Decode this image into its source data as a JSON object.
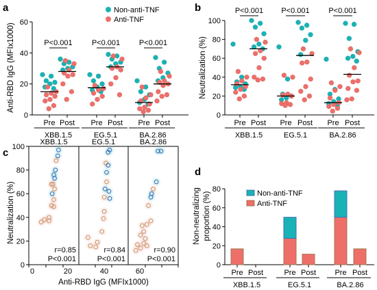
{
  "colors": {
    "non_anti_tnf": "#19b3b5",
    "anti_tnf": "#ee6f6a",
    "stack_non": "#19b3b5",
    "stack_anti": "#ee6f6a"
  },
  "panels": {
    "a": {
      "label": "a",
      "ylabel": "Anti-RBD IgG (MFIx1000)",
      "yticks": [
        "0",
        "20",
        "40",
        "60"
      ],
      "legend": [
        "Non-anti-TNF",
        "Anti-TNF"
      ]
    },
    "b": {
      "label": "b",
      "ylabel": "Neutralization (%)",
      "yticks": [
        "0",
        "20",
        "40",
        "60",
        "80",
        "100"
      ]
    },
    "c": {
      "label": "c",
      "ylabel": "Neutralization (%)",
      "xlabel": "Anti-RBD IgG (MFIx1000)",
      "yticks": [
        "0",
        "20",
        "40",
        "60",
        "80",
        "100"
      ],
      "xticks": [
        "0",
        "20",
        "40",
        "60"
      ]
    },
    "d": {
      "label": "d",
      "ylabel": "Non-neutralizing proportion (%)",
      "yticks": [
        "0",
        "20",
        "40",
        "60",
        "80"
      ],
      "legend": [
        "Non-anti-TNF",
        "Anti-TNF"
      ]
    }
  },
  "chart_data": [
    {
      "type": "scatter",
      "panel": "a",
      "ylabel": "Anti-RBD IgG (MFIx1000)",
      "ylim": [
        0,
        60
      ],
      "categories": [
        "Pre",
        "Post",
        "Pre",
        "Post",
        "Pre",
        "Post"
      ],
      "groups": [
        "XBB.1.5",
        "EG.5.1",
        "BA.2.86"
      ],
      "significance": [
        "P<0.001",
        "P<0.001",
        "P<0.001"
      ],
      "medians": [
        15,
        28,
        17.5,
        31,
        8,
        20
      ],
      "series": [
        {
          "name": "Non-anti-TNF",
          "values": [
            [
              26,
              25,
              22,
              21,
              20,
              18,
              17
            ],
            [
              36,
              34,
              33,
              31,
              30,
              29
            ],
            [
              26,
              25,
              22,
              20,
              18,
              16,
              15
            ],
            [
              39,
              38,
              36,
              34,
              33,
              31
            ],
            [
              22,
              18,
              15,
              13,
              10,
              8,
              7
            ],
            [
              37,
              34,
              30,
              27,
              24,
              22
            ]
          ]
        },
        {
          "name": "Anti-TNF",
          "values": [
            [
              18,
              15,
              14,
              13,
              12,
              10,
              9,
              6,
              4
            ],
            [
              35,
              33,
              29,
              27,
              26,
              25,
              20,
              15,
              10
            ],
            [
              19,
              17,
              16,
              14,
              12,
              10,
              7
            ],
            [
              38,
              36,
              31,
              30,
              29,
              24,
              20,
              13
            ],
            [
              18,
              13,
              11,
              9,
              7,
              5,
              4,
              3,
              2
            ],
            [
              28,
              25,
              22,
              21,
              20,
              19,
              15,
              13,
              12,
              9
            ]
          ]
        }
      ]
    },
    {
      "type": "scatter",
      "panel": "b",
      "ylabel": "Neutralization (%)",
      "ylim": [
        0,
        100
      ],
      "categories": [
        "Pre",
        "Post",
        "Pre",
        "Post",
        "Pre",
        "Post"
      ],
      "groups": [
        "XBB.1.5",
        "EG.5.1",
        "BA.2.86"
      ],
      "significance": [
        "P<0.001",
        "P<0.001",
        "P<0.001"
      ],
      "medians": [
        32,
        70,
        20,
        63,
        13,
        43
      ],
      "series": [
        {
          "name": "Non-anti-TNF",
          "values": [
            [
              75,
              40,
              35,
              33,
              30,
              29,
              27
            ],
            [
              100,
              97,
              93,
              86,
              75,
              72,
              70
            ],
            [
              72,
              38,
              22,
              20,
              18,
              16
            ],
            [
              98,
              95,
              92,
              85,
              79,
              64
            ],
            [
              59,
              27,
              22,
              17,
              14,
              12,
              10
            ],
            [
              97,
              96,
              81,
              67,
              62,
              60,
              57
            ]
          ]
        },
        {
          "name": "Anti-TNF",
          "values": [
            [
              46,
              40,
              36,
              33,
              30,
              27,
              24,
              20,
              17
            ],
            [
              80,
              77,
              68,
              65,
              60,
              50,
              40,
              38,
              37
            ],
            [
              42,
              40,
              22,
              21,
              20,
              13,
              12,
              11,
              10
            ],
            [
              70,
              65,
              56,
              55,
              38,
              30,
              25,
              20,
              16
            ],
            [
              34,
              30,
              26,
              18,
              13,
              11,
              9,
              7,
              4
            ],
            [
              70,
              66,
              50,
              42,
              36,
              35,
              28,
              26,
              17,
              16
            ]
          ]
        }
      ]
    },
    {
      "type": "scatter",
      "panel": "c",
      "xlabel": "Anti-RBD IgG (MFIx1000)",
      "ylabel": "Neutralization (%)",
      "xlim": [
        0,
        60
      ],
      "ylim": [
        0,
        100
      ],
      "facets": [
        "XBB.1.5",
        "EG.5.1",
        "BA.2.86"
      ],
      "stats": [
        {
          "r": "r=0.85",
          "p": "P<0.001"
        },
        {
          "r": "r=0.84",
          "p": "P<0.001"
        },
        {
          "r": "r=0.90",
          "p": "P<0.001"
        }
      ],
      "points": [
        [
          [
            36,
            97,
            "n"
          ],
          [
            35,
            92,
            "n"
          ],
          [
            33,
            88,
            "a"
          ],
          [
            32,
            80,
            "n"
          ],
          [
            30,
            76,
            "n"
          ],
          [
            31,
            73,
            "n"
          ],
          [
            29,
            68,
            "a"
          ],
          [
            27,
            68,
            "a"
          ],
          [
            31,
            64,
            "a"
          ],
          [
            28,
            60,
            "n"
          ],
          [
            30,
            55,
            "a"
          ],
          [
            27,
            50,
            "a"
          ],
          [
            30,
            49,
            "a"
          ],
          [
            24,
            40,
            "a"
          ],
          [
            24,
            37,
            "a"
          ],
          [
            18,
            38,
            "a"
          ],
          [
            14,
            36,
            "a"
          ]
        ],
        [
          [
            38,
            97,
            "n"
          ],
          [
            36,
            95,
            "n"
          ],
          [
            33,
            86,
            "a"
          ],
          [
            36,
            84,
            "n"
          ],
          [
            34,
            78,
            "n"
          ],
          [
            34,
            70,
            "a"
          ],
          [
            32,
            64,
            "n"
          ],
          [
            37,
            62,
            "n"
          ],
          [
            31,
            57,
            "a"
          ],
          [
            38,
            56,
            "n"
          ],
          [
            31,
            45,
            "a"
          ],
          [
            30,
            39,
            "a"
          ],
          [
            28,
            28,
            "a"
          ],
          [
            22,
            19,
            "a"
          ],
          [
            20,
            15,
            "a"
          ],
          [
            13,
            16,
            "a"
          ],
          [
            10,
            23,
            "a"
          ]
        ],
        [
          [
            40,
            96,
            "n"
          ],
          [
            36,
            96,
            "n"
          ],
          [
            34,
            70,
            "n"
          ],
          [
            30,
            64,
            "a"
          ],
          [
            28,
            60,
            "n"
          ],
          [
            27,
            57,
            "n"
          ],
          [
            24,
            50,
            "a"
          ],
          [
            27,
            37,
            "a"
          ],
          [
            22,
            34,
            "a"
          ],
          [
            16,
            33,
            "a"
          ],
          [
            18,
            28,
            "a"
          ],
          [
            14,
            25,
            "a"
          ],
          [
            20,
            22,
            "a"
          ],
          [
            18,
            18,
            "a"
          ],
          [
            10,
            17,
            "a"
          ],
          [
            14,
            14,
            "a"
          ],
          [
            8,
            12,
            "a"
          ],
          [
            22,
            16,
            "a"
          ]
        ]
      ]
    },
    {
      "type": "bar",
      "panel": "d",
      "ylabel": "Non-neutralizing proportion (%)",
      "ylim": [
        0,
        80
      ],
      "categories": [
        "Pre",
        "Post",
        "Pre",
        "Post",
        "Pre",
        "Post"
      ],
      "groups": [
        "XBB.1.5",
        "EG.5.1",
        "BA.2.86"
      ],
      "series": [
        {
          "name": "Anti-TNF",
          "values": [
            16.7,
            0,
            27.8,
            11.1,
            50,
            16.7
          ]
        },
        {
          "name": "Non-anti-TNF",
          "values": [
            0,
            0,
            22.2,
            0,
            27.8,
            0
          ]
        }
      ]
    }
  ]
}
